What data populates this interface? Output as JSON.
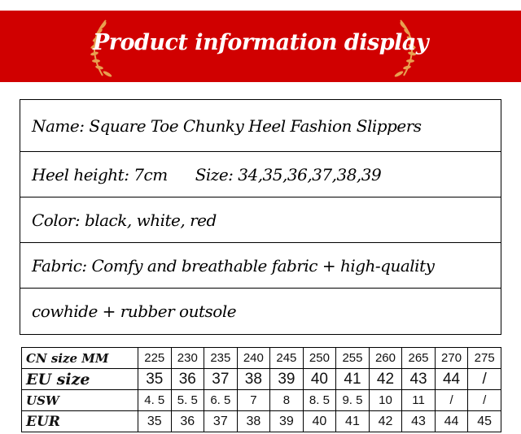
{
  "banner": {
    "title": "Product information display",
    "color": "#d00000",
    "laurel_color": "#e8a050"
  },
  "info": {
    "name": "Name: Square Toe Chunky Heel Fashion Slippers",
    "heel_height": "Heel height: 7cm",
    "size": "Size: 34,35,36,37,38,39",
    "color": "Color: black, white, red",
    "fabric_line1": "Fabric: Comfy and breathable fabric + high-quality",
    "fabric_line2": "cowhide + rubber outsole"
  },
  "size_table": {
    "rows": [
      {
        "label": "CN size MM",
        "values": [
          "225",
          "230",
          "235",
          "240",
          "245",
          "250",
          "255",
          "260",
          "265",
          "270",
          "275"
        ]
      },
      {
        "label": "EU size",
        "values": [
          "35",
          "36",
          "37",
          "38",
          "39",
          "40",
          "41",
          "42",
          "43",
          "44",
          "/"
        ]
      },
      {
        "label": "USW",
        "values": [
          "4. 5",
          "5. 5",
          "6. 5",
          "7",
          "8",
          "8. 5",
          "9. 5",
          "10",
          "11",
          "/",
          "/"
        ]
      },
      {
        "label": "EUR",
        "values": [
          "35",
          "36",
          "37",
          "38",
          "39",
          "40",
          "41",
          "42",
          "43",
          "44",
          "45"
        ]
      }
    ]
  }
}
